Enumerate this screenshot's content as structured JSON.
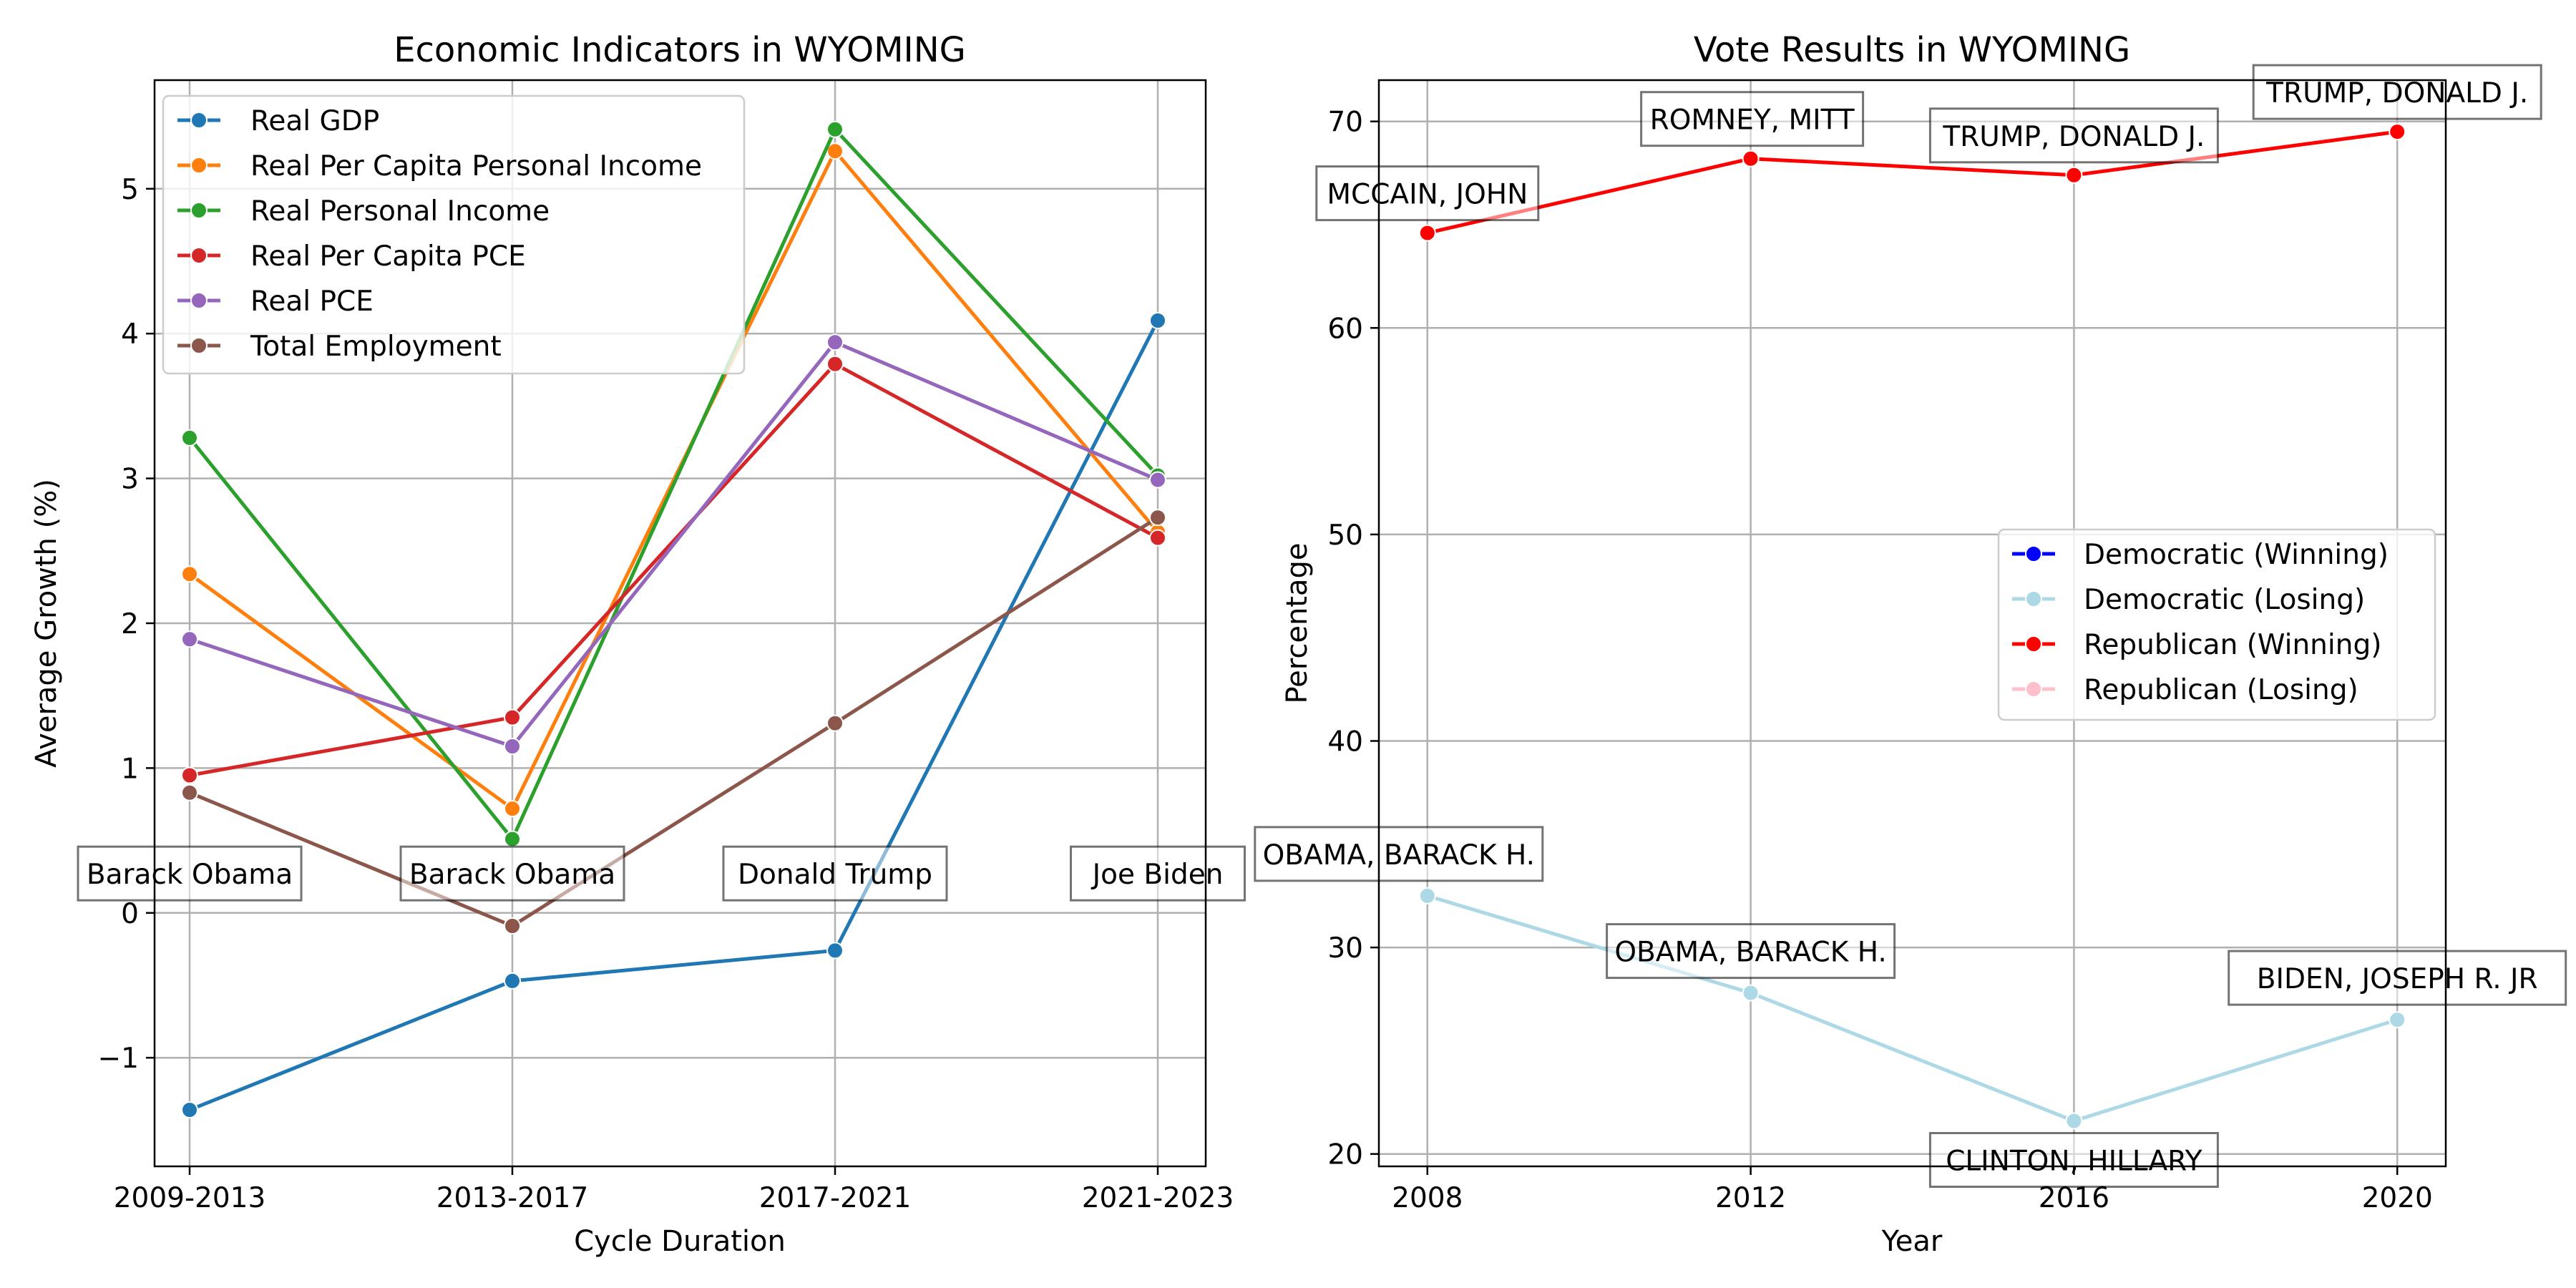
{
  "chart_data": [
    {
      "type": "line",
      "title": "Economic Indicators in WYOMING",
      "xlabel": "Cycle Duration",
      "ylabel": "Average Growth (%)",
      "categories": [
        "2009-2013",
        "2013-2017",
        "2017-2021",
        "2021-2023"
      ],
      "ylim": [
        -1.75,
        5.75
      ],
      "yticks": [
        -1,
        0,
        1,
        2,
        3,
        4,
        5
      ],
      "ytick_labels": [
        "−1",
        "0",
        "1",
        "2",
        "3",
        "4",
        "5"
      ],
      "grid": true,
      "legend_position": "upper-left",
      "series": [
        {
          "name": "Real GDP",
          "color": "#1f77b4",
          "values": [
            -1.36,
            -0.47,
            -0.26,
            4.09
          ]
        },
        {
          "name": "Real Per Capita Personal Income",
          "color": "#ff7f0e",
          "values": [
            2.34,
            0.72,
            5.26,
            2.63
          ]
        },
        {
          "name": "Real Personal Income",
          "color": "#2ca02c",
          "values": [
            3.28,
            0.51,
            5.41,
            3.02
          ]
        },
        {
          "name": "Real Per Capita PCE",
          "color": "#d62728",
          "values": [
            0.95,
            1.35,
            3.79,
            2.59
          ]
        },
        {
          "name": "Real PCE",
          "color": "#9467bd",
          "values": [
            1.89,
            1.15,
            3.94,
            2.99
          ]
        },
        {
          "name": "Total Employment",
          "color": "#8c564b",
          "values": [
            0.83,
            -0.09,
            1.31,
            2.73
          ]
        }
      ],
      "annotations": [
        {
          "category": "2009-2013",
          "text": "Barack Obama",
          "y": 0.27
        },
        {
          "category": "2013-2017",
          "text": "Barack Obama",
          "y": 0.27
        },
        {
          "category": "2017-2021",
          "text": "Donald Trump",
          "y": 0.27
        },
        {
          "category": "2021-2023",
          "text": "Joe Biden",
          "y": 0.27
        }
      ]
    },
    {
      "type": "line",
      "title": "Vote Results in WYOMING",
      "xlabel": "Year",
      "ylabel": "Percentage",
      "x": [
        2008,
        2012,
        2016,
        2020
      ],
      "xlim": [
        2007.4,
        2020.6
      ],
      "ylim": [
        19.4,
        72.0
      ],
      "xticks": [
        2008,
        2012,
        2016,
        2020
      ],
      "yticks": [
        20,
        30,
        40,
        50,
        60,
        70
      ],
      "grid": true,
      "legend_position": "center-right",
      "legend": [
        {
          "name": "Democratic (Winning)",
          "color": "#0000ff"
        },
        {
          "name": "Democratic (Losing)",
          "color": "#add8e6"
        },
        {
          "name": "Republican (Winning)",
          "color": "#ff0000"
        },
        {
          "name": "Republican (Losing)",
          "color": "#ffc0cb"
        }
      ],
      "series": [
        {
          "name": "Republican (Winning)",
          "color": "#ff0000",
          "x": [
            2008,
            2012,
            2016,
            2020
          ],
          "values": [
            64.6,
            68.2,
            67.4,
            69.5
          ],
          "labels": [
            "MCCAIN, JOHN",
            "ROMNEY, MITT",
            "TRUMP, DONALD J.",
            "TRUMP, DONALD J."
          ]
        },
        {
          "name": "Democratic (Losing)",
          "color": "#add8e6",
          "x": [
            2008,
            2012,
            2016,
            2020
          ],
          "values": [
            32.5,
            27.8,
            21.6,
            26.5
          ],
          "labels": [
            "OBAMA, BARACK H.",
            "OBAMA, BARACK H.",
            "CLINTON, HILLARY",
            "BIDEN, JOSEPH R. JR"
          ]
        }
      ]
    }
  ]
}
